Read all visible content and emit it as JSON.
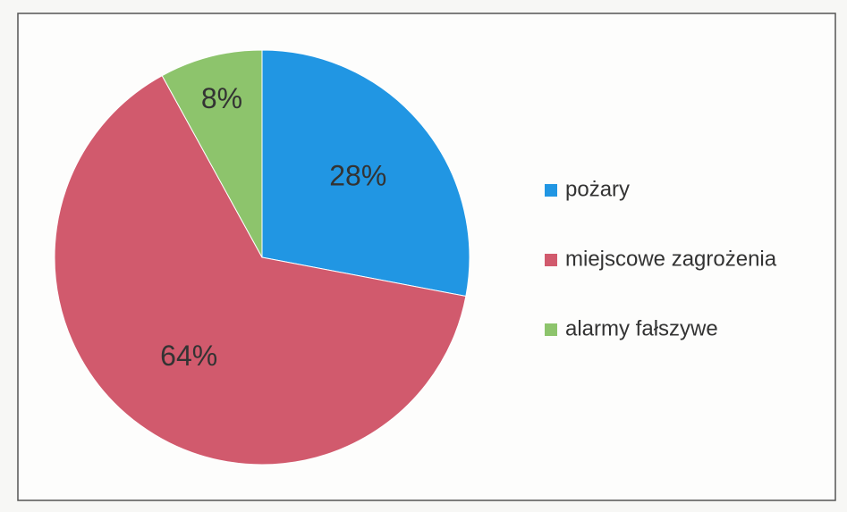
{
  "chart_data": {
    "type": "pie",
    "categories": [
      "pożary",
      "miejscowe zagrożenia",
      "alarmy fałszywe"
    ],
    "values": [
      28,
      64,
      8
    ],
    "value_labels": [
      "28%",
      "64%",
      "8%"
    ],
    "colors": [
      "#2196e3",
      "#d15a6d",
      "#8dc46c"
    ],
    "legend": "right"
  }
}
